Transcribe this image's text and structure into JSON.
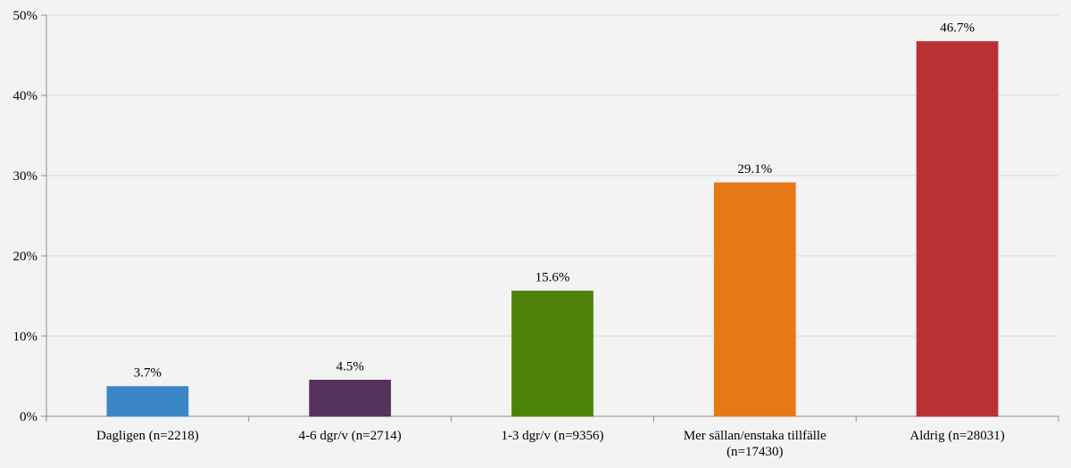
{
  "chart_data": {
    "type": "bar",
    "categories": [
      "Dagligen (n=2218)",
      "4-6 dgr/v (n=2714)",
      "1-3 dgr/v (n=9356)",
      "Mer sällan/enstaka tillfälle\n(n=17430)",
      "Aldrig (n=28031)"
    ],
    "values": [
      3.7,
      4.5,
      15.6,
      29.1,
      46.7
    ],
    "data_labels": [
      "3.7%",
      "4.5%",
      "15.6%",
      "29.1%",
      "46.7%"
    ],
    "colors": [
      "#3d86c6",
      "#56335c",
      "#4c8208",
      "#e67818",
      "#b83234"
    ],
    "ylim": [
      0,
      50
    ],
    "yticks": [
      0,
      10,
      20,
      30,
      40,
      50
    ],
    "ytick_labels": [
      "0%",
      "10%",
      "20%",
      "30%",
      "40%",
      "50%"
    ],
    "title": "",
    "xlabel": "",
    "ylabel": "",
    "grid": true,
    "legend": "none",
    "background_color": "#f3f3f3",
    "grid_color": "#d9d9d9",
    "axis_color": "#8c8c8c"
  }
}
